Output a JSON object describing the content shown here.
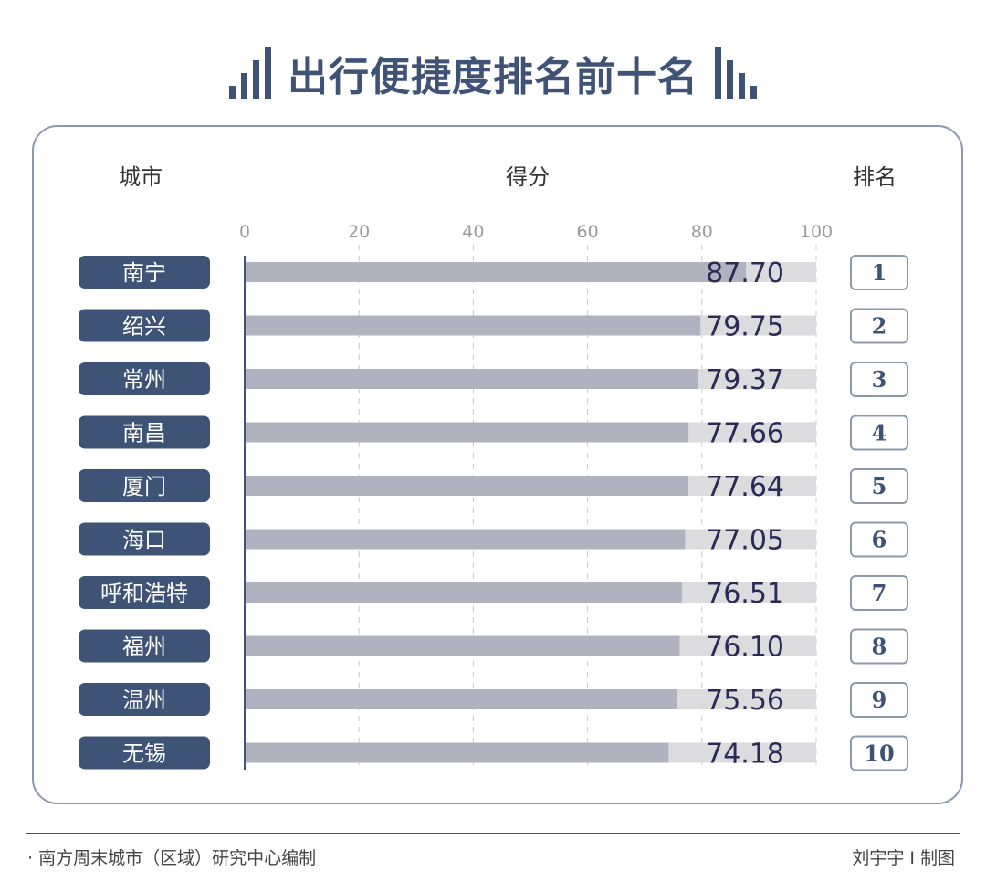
{
  "title": "出行便捷度排名前十名",
  "headers": {
    "city": "城市",
    "score": "得分",
    "rank": "排名"
  },
  "colors": {
    "accent": "#3e5376",
    "bar": "#b0b2bf",
    "track": "#dcdcdf",
    "value_text": "#2a2a55",
    "frame": "#8c99ad"
  },
  "footer": {
    "source": "· 南方周末城市（区域）研究中心编制",
    "credit": "刘宇宇 I 制图"
  },
  "chart_data": {
    "type": "bar",
    "orientation": "horizontal",
    "xlim": [
      0,
      100
    ],
    "ticks": [
      0,
      20,
      40,
      60,
      80,
      100
    ],
    "tick_labels": [
      "0",
      "20",
      "40",
      "60",
      "80",
      "100"
    ],
    "categories": [
      "南宁",
      "绍兴",
      "常州",
      "南昌",
      "厦门",
      "海口",
      "呼和浩特",
      "福州",
      "温州",
      "无锡"
    ],
    "values": [
      87.7,
      79.75,
      79.37,
      77.66,
      77.64,
      77.05,
      76.51,
      76.1,
      75.56,
      74.18
    ],
    "value_labels": [
      "87.70",
      "79.75",
      "79.37",
      "77.66",
      "77.64",
      "77.05",
      "76.51",
      "76.10",
      "75.56",
      "74.18"
    ],
    "ranks": [
      "1",
      "2",
      "3",
      "4",
      "5",
      "6",
      "7",
      "8",
      "9",
      "10"
    ],
    "grid": true
  }
}
